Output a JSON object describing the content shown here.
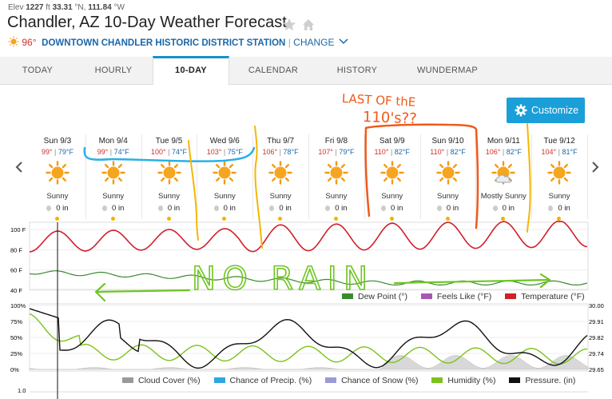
{
  "header": {
    "elev_label": "Elev",
    "elev_value": "1227",
    "elev_unit": "ft",
    "lat": "33.31",
    "lat_unit": "°N,",
    "lon": "111.84",
    "lon_unit": "°W",
    "title": "Chandler, AZ 10-Day Weather Forecast",
    "current_temp": "96°",
    "station_name": "DOWNTOWN CHANDLER HISTORIC DISTRICT STATION",
    "change_label": "CHANGE"
  },
  "tabs": [
    {
      "label": "TODAY"
    },
    {
      "label": "HOURLY"
    },
    {
      "label": "10-DAY"
    },
    {
      "label": "CALENDAR"
    },
    {
      "label": "HISTORY"
    },
    {
      "label": "WUNDERMAP"
    }
  ],
  "customize_label": "Customize",
  "days": [
    {
      "name": "Sun 9/3",
      "hi": "99°",
      "lo": "79°F",
      "cond": "Sunny",
      "icon": "sun-icon",
      "precip": "0 in"
    },
    {
      "name": "Mon 9/4",
      "hi": "99°",
      "lo": "74°F",
      "cond": "Sunny",
      "icon": "sun-icon",
      "precip": "0 in"
    },
    {
      "name": "Tue 9/5",
      "hi": "100°",
      "lo": "74°F",
      "cond": "Sunny",
      "icon": "sun-icon",
      "precip": "0 in"
    },
    {
      "name": "Wed 9/6",
      "hi": "103°",
      "lo": "75°F",
      "cond": "Sunny",
      "icon": "sun-icon",
      "precip": "0 in"
    },
    {
      "name": "Thu 9/7",
      "hi": "106°",
      "lo": "78°F",
      "cond": "Sunny",
      "icon": "sun-icon",
      "precip": "0 in"
    },
    {
      "name": "Fri 9/8",
      "hi": "107°",
      "lo": "79°F",
      "cond": "Sunny",
      "icon": "sun-icon",
      "precip": "0 in"
    },
    {
      "name": "Sat 9/9",
      "hi": "110°",
      "lo": "82°F",
      "cond": "Sunny",
      "icon": "sun-icon",
      "precip": "0 in"
    },
    {
      "name": "Sun 9/10",
      "hi": "110°",
      "lo": "82°F",
      "cond": "Sunny",
      "icon": "sun-icon",
      "precip": "0 in"
    },
    {
      "name": "Mon 9/11",
      "hi": "106°",
      "lo": "82°F",
      "cond": "Mostly Sunny",
      "icon": "mostly-sunny-icon",
      "precip": "0 in"
    },
    {
      "name": "Tue 9/12",
      "hi": "104°",
      "lo": "81°F",
      "cond": "Sunny",
      "icon": "sun-icon",
      "precip": "0 in"
    }
  ],
  "temp_chart": {
    "y_ticks": [
      "100 F",
      "80 F",
      "60 F",
      "40 F"
    ],
    "legend": [
      {
        "label": "Dew Point (°)",
        "color": "#3a8a2e"
      },
      {
        "label": "Feels Like (°F)",
        "color": "#a855b5"
      },
      {
        "label": "Temperature (°F)",
        "color": "#d0202a"
      }
    ]
  },
  "pct_chart": {
    "y_ticks_left": [
      "100%",
      "75%",
      "50%",
      "25%",
      "0%"
    ],
    "y_ticks_right": [
      "30.00",
      "29.91",
      "29.82",
      "29.74",
      "29.65"
    ],
    "legend": [
      {
        "label": "Cloud Cover (%)",
        "color": "#999999"
      },
      {
        "label": "Chance of Precip. (%)",
        "color": "#2fa7e0"
      },
      {
        "label": "Chance of Snow (%)",
        "color": "#9a9ad6"
      },
      {
        "label": "Humidity (%)",
        "color": "#7cc21a"
      },
      {
        "label": "Pressure. (in)",
        "color": "#111111"
      }
    ]
  },
  "precip_chart": {
    "y_tick": "1.0"
  },
  "annotations": {
    "last_of": "LAST OF thE",
    "hundred_tens": "110's??",
    "no_rain": "NO RAIN"
  }
}
